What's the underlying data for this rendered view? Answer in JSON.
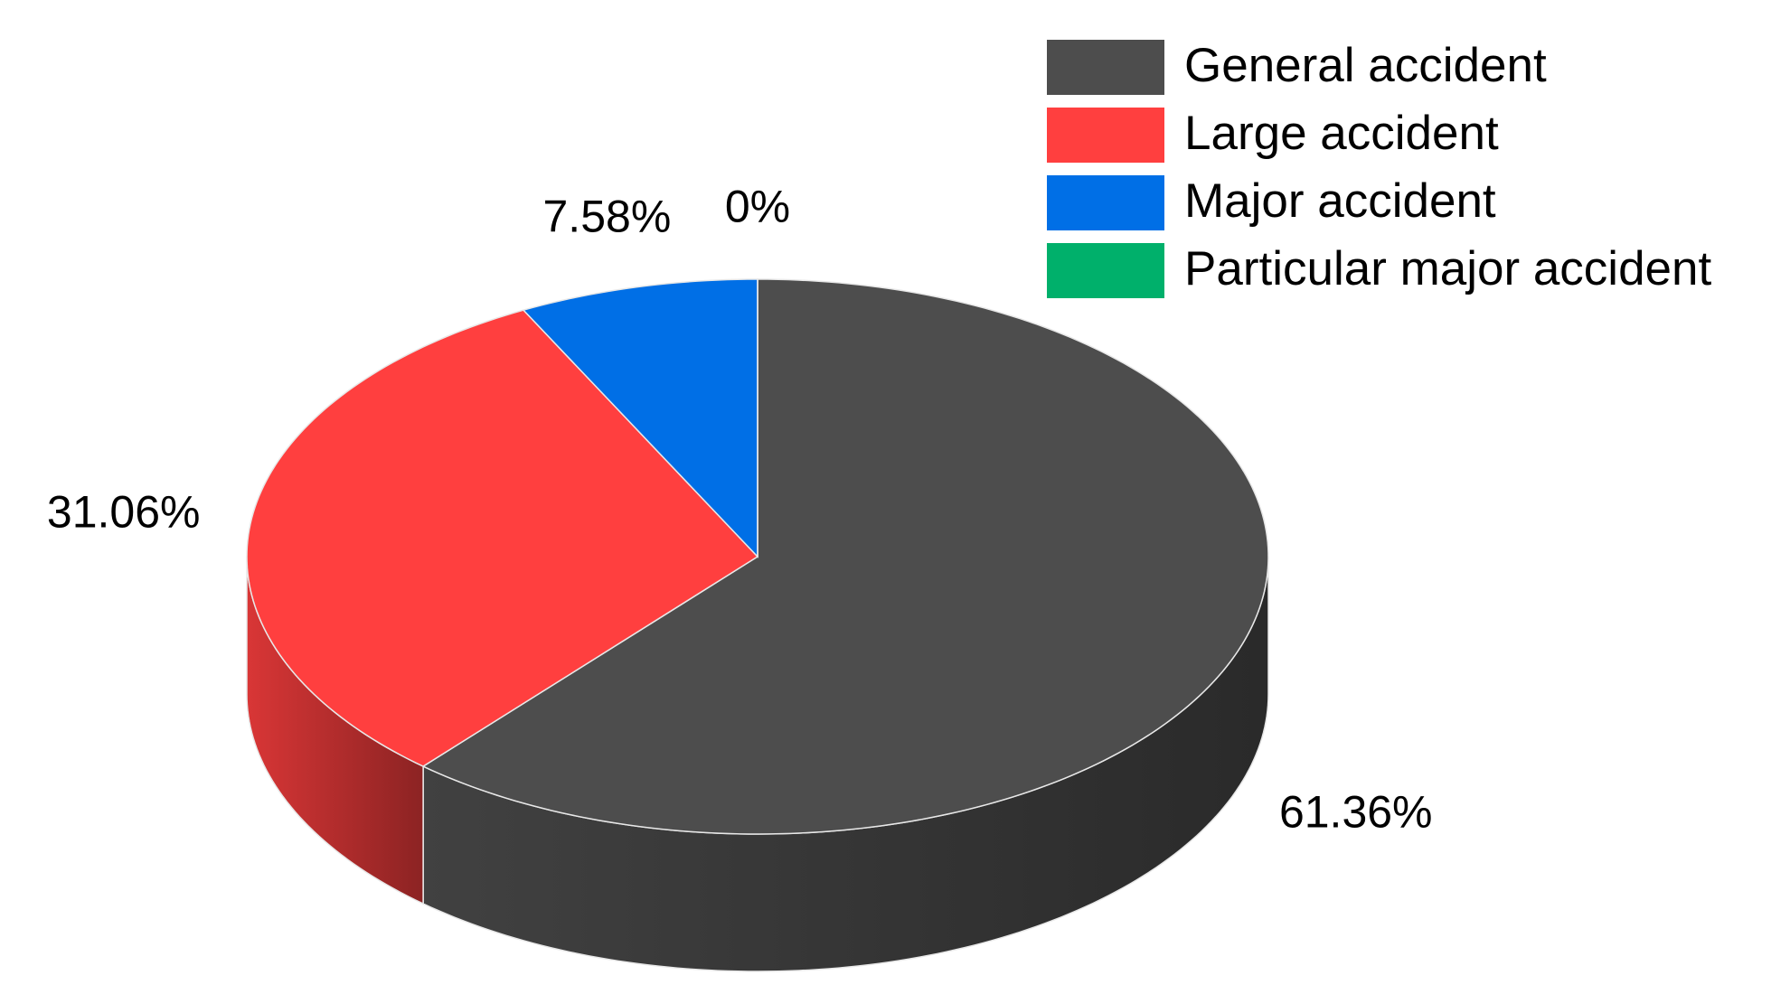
{
  "chart_data": {
    "type": "pie3d",
    "categories": [
      "General accident",
      "Large accident",
      "Major accident",
      "Particular major accident"
    ],
    "values": [
      61.36,
      31.06,
      7.58,
      0
    ],
    "value_labels": [
      "61.36%",
      "31.06%",
      "7.58%",
      "0%"
    ],
    "colors": [
      "#4d4d4d",
      "#ff3f3f",
      "#006fe6",
      "#00b06b"
    ],
    "legend": "top-right"
  }
}
